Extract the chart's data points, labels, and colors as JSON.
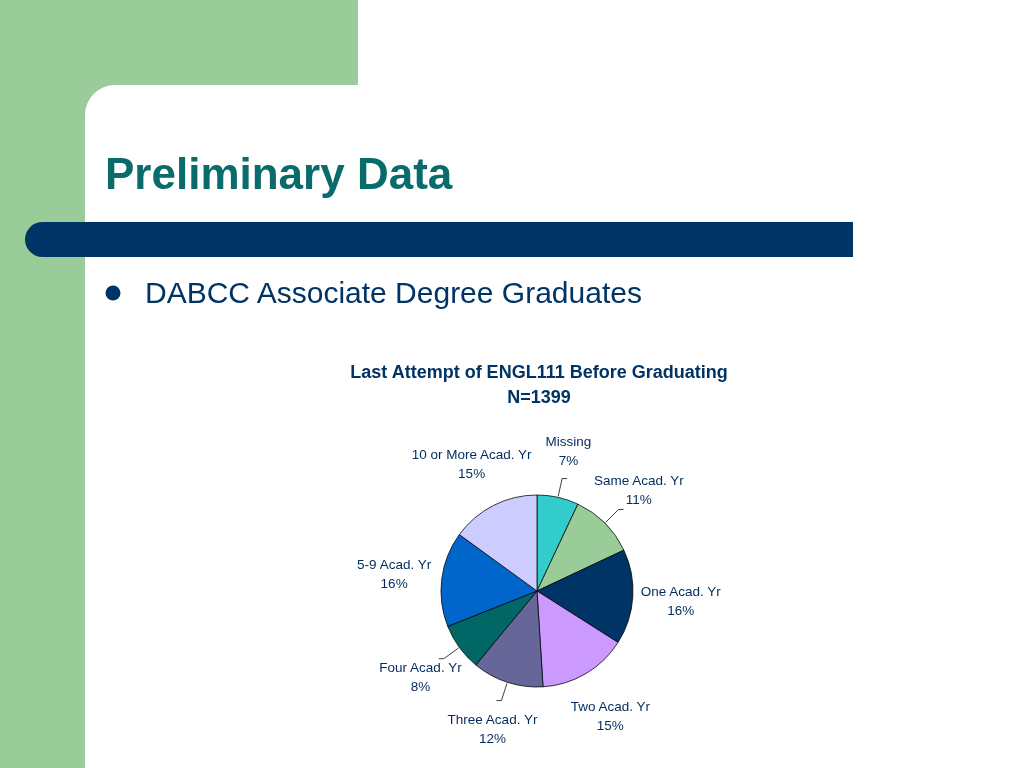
{
  "chart_data": {
    "type": "pie",
    "title": "Last Attempt of ENGL111 Before Graduating",
    "subtitle": "N=1399",
    "annotations": [
      "Preliminary Data",
      "DABCC Associate Degree Graduates"
    ],
    "categories": [
      "Missing",
      "Same Acad. Yr",
      "One Acad. Yr",
      "Two Acad. Yr",
      "Three Acad. Yr",
      "Four Acad. Yr",
      "5-9 Acad. Yr",
      "10 or More Acad. Yr"
    ],
    "values": [
      7,
      11,
      16,
      15,
      12,
      8,
      16,
      15
    ],
    "value_labels": [
      "7%",
      "11%",
      "16%",
      "15%",
      "12%",
      "8%",
      "16%",
      "15%"
    ],
    "colors": [
      "#33cccc",
      "#99cc99",
      "#003366",
      "#cc99ff",
      "#666699",
      "#006666",
      "#0066cc",
      "#ccccff"
    ]
  }
}
